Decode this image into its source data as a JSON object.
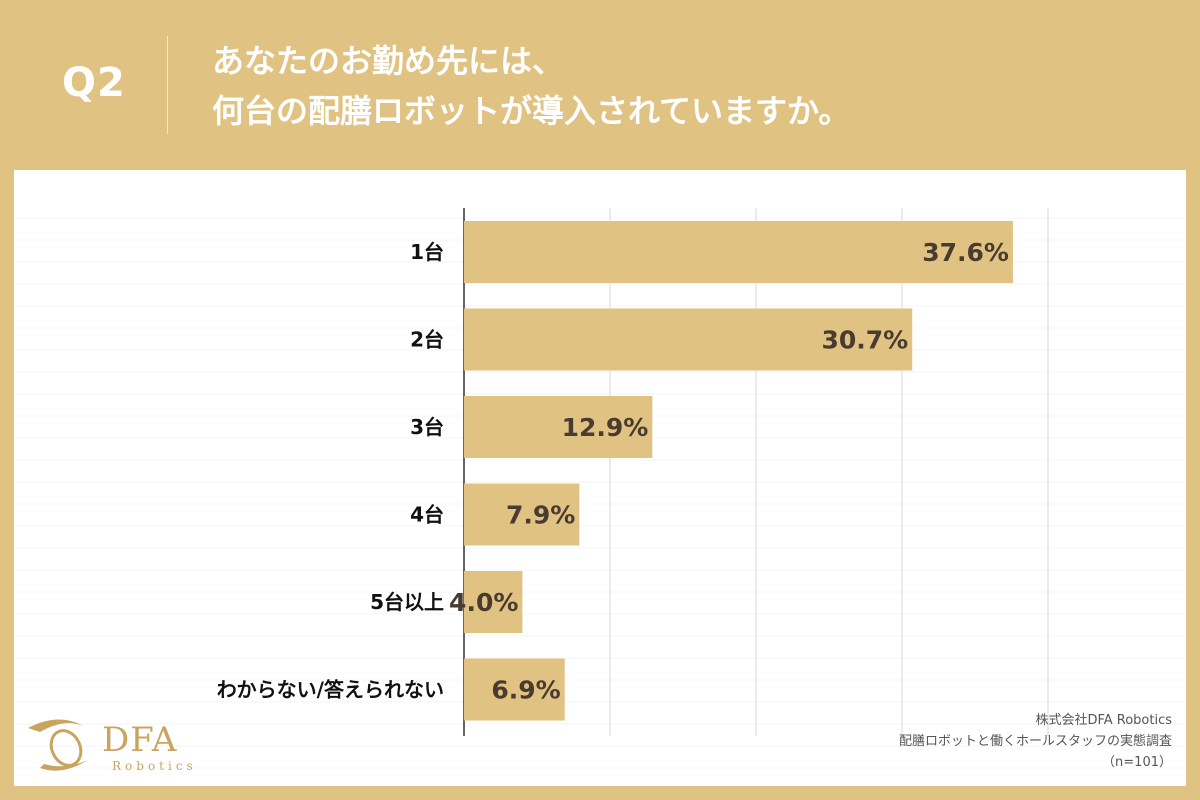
{
  "header": {
    "question_number": "Q2",
    "title_line1": "あなたのお勤め先には、",
    "title_line2": "何台の配膳ロボットが導入されていますか。"
  },
  "chart_data": {
    "type": "bar",
    "orientation": "horizontal",
    "categories": [
      "1台",
      "2台",
      "3台",
      "4台",
      "5台以上",
      "わからない/答えられない"
    ],
    "values": [
      37.6,
      30.7,
      12.9,
      7.9,
      4.0,
      6.9
    ],
    "value_labels": [
      "37.6%",
      "30.7%",
      "12.9%",
      "7.9%",
      "4.0%",
      "6.9%"
    ],
    "unit": "%",
    "xlim": [
      0,
      40
    ],
    "grid": true,
    "bar_color": "#e0c283"
  },
  "logo": {
    "word": "DFA",
    "sub": "Robotics"
  },
  "source": {
    "company": "株式会社DFA Robotics",
    "survey": "配膳ロボットと働くホールスタッフの実態調査",
    "sample": "（n=101）"
  },
  "colors": {
    "background": "#e0c283",
    "panel": "#ffffff",
    "bar": "#e0c283",
    "value_text": "#4a3b30"
  }
}
